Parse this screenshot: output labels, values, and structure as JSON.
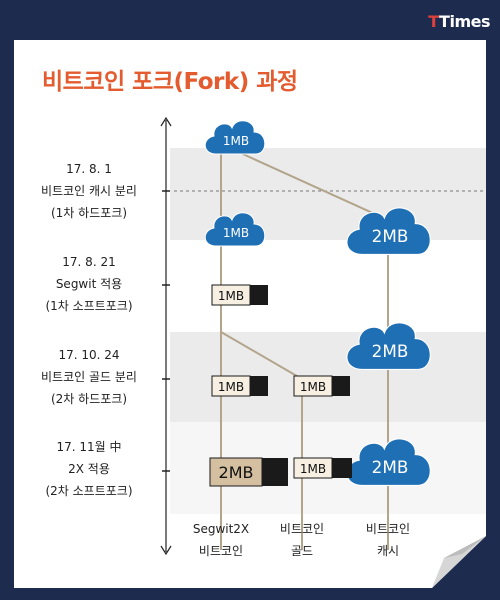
{
  "logo": {
    "t1": "T",
    "rest": "Times"
  },
  "title": "비트코인 포크(Fork) 과정",
  "events": [
    {
      "date": "17. 8. 1",
      "line1": "비트코인 캐시 분리",
      "line2": "(1차 하드포크)"
    },
    {
      "date": "17. 8. 21",
      "line1": "Segwit 적용",
      "line2": "(1차 소프트포크)"
    },
    {
      "date": "17. 10. 24",
      "line1": "비트코인 골드 분리",
      "line2": "(2차 하드포크)"
    },
    {
      "date": "17. 11월 中",
      "line1": "2X 적용",
      "line2": "(2차 소프트포크)"
    }
  ],
  "columns": [
    {
      "line1": "Segwit2X",
      "line2": "비트코인"
    },
    {
      "line1": "비트코인",
      "line2": "골드"
    },
    {
      "line1": "비트코인",
      "line2": "캐시"
    }
  ],
  "nodes": {
    "btc_start": "1MB",
    "btc_after_split": "1MB",
    "bch_first": "2MB",
    "btc_segwit": "1MB",
    "bch_second": "2MB",
    "btc_third": "1MB",
    "btg_first": "1MB",
    "btc_2x": "2MB",
    "btg_second": "1MB",
    "bch_third": "2MB"
  },
  "colors": {
    "title": "#e35b2e",
    "cloud": "#1f6fb4",
    "line": "#b2a58c",
    "block_fill": "#f6efe2",
    "block_large": "#d4bfa0",
    "block_dark": "#1a1a1a",
    "band": "#ebebeb",
    "background": "#1c2b4e"
  }
}
